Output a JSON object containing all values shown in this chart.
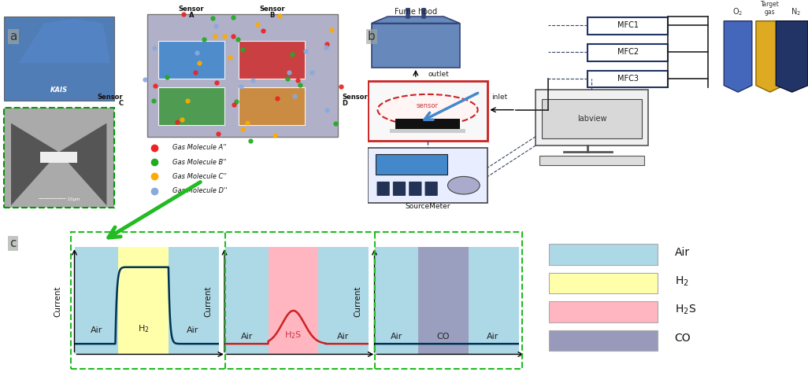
{
  "bg_color": "#ffffff",
  "panel_c_box_color": "#22bb22",
  "air_color": "#add8e6",
  "h2_color": "#ffffaa",
  "h2s_color": "#ffb6c1",
  "co_color": "#9999bb",
  "label_air": "Air",
  "label_h2": "H$_2$",
  "label_h2s": "H$_2$S",
  "label_co": "CO",
  "ylabel": "Current",
  "legend_air": "Air",
  "legend_h2": "H$_2$",
  "legend_h2s": "H$_2$S",
  "legend_co": "CO",
  "molecule_colors": [
    "#ee2222",
    "#22aa22",
    "#ffaa00",
    "#88aadd"
  ],
  "legend_molecules": [
    "Gas Molecule A''",
    "Gas Molecule B''",
    "Gas Molecule C''",
    "Gas Molecule D''"
  ],
  "line_color_h2": "#003355",
  "line_color_h2s": "#cc2222",
  "line_color_co": "#003355"
}
